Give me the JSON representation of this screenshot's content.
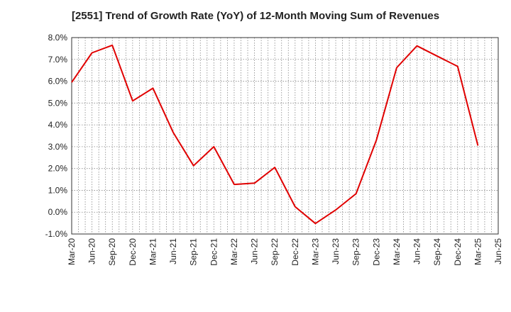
{
  "chart_data": {
    "type": "line",
    "title": "[2551]  Trend of Growth Rate (YoY) of 12-Month Moving Sum of Revenues",
    "xlabel": "",
    "ylabel": "",
    "x": [
      "Mar-20",
      "Jun-20",
      "Sep-20",
      "Dec-20",
      "Mar-21",
      "Jun-21",
      "Sep-21",
      "Dec-21",
      "Mar-22",
      "Jun-22",
      "Sep-22",
      "Dec-22",
      "Mar-23",
      "Jun-23",
      "Sep-23",
      "Dec-23",
      "Mar-24",
      "Jun-24",
      "Sep-24",
      "Dec-24",
      "Mar-25",
      "Jun-25"
    ],
    "series": [
      {
        "color": "#e00000",
        "values": [
          5.95,
          7.3,
          7.65,
          5.1,
          5.68,
          3.65,
          2.13,
          3.0,
          1.27,
          1.33,
          2.05,
          0.25,
          -0.52,
          0.1,
          0.85,
          3.3,
          6.62,
          7.62,
          7.15,
          6.68,
          3.05,
          null
        ]
      }
    ],
    "yticks": [
      "-1.0%",
      "0.0%",
      "1.0%",
      "2.0%",
      "3.0%",
      "4.0%",
      "5.0%",
      "6.0%",
      "7.0%",
      "8.0%"
    ],
    "ylim": [
      -1,
      8
    ],
    "grid": true,
    "legend": "none"
  }
}
